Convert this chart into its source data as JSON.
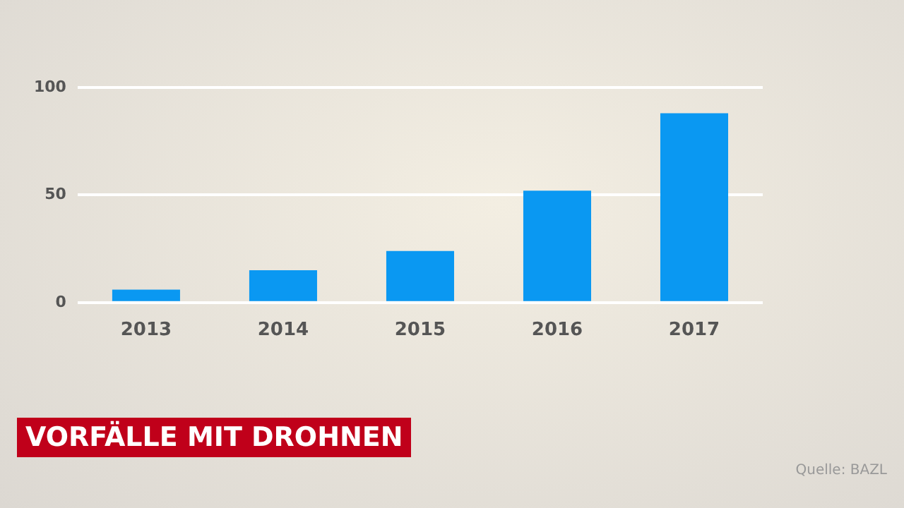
{
  "chart_data": {
    "type": "bar",
    "title": "VORFÄLLE MIT DROHNEN",
    "categories": [
      "2013",
      "2014",
      "2015",
      "2016",
      "2017"
    ],
    "values": [
      6,
      15,
      24,
      52,
      88
    ],
    "color": "#0a98f2",
    "ylim": [
      0,
      100
    ],
    "yticks": [
      0,
      50,
      100
    ],
    "grid": "y",
    "annotations": [
      "Quelle: BAZL"
    ]
  }
}
